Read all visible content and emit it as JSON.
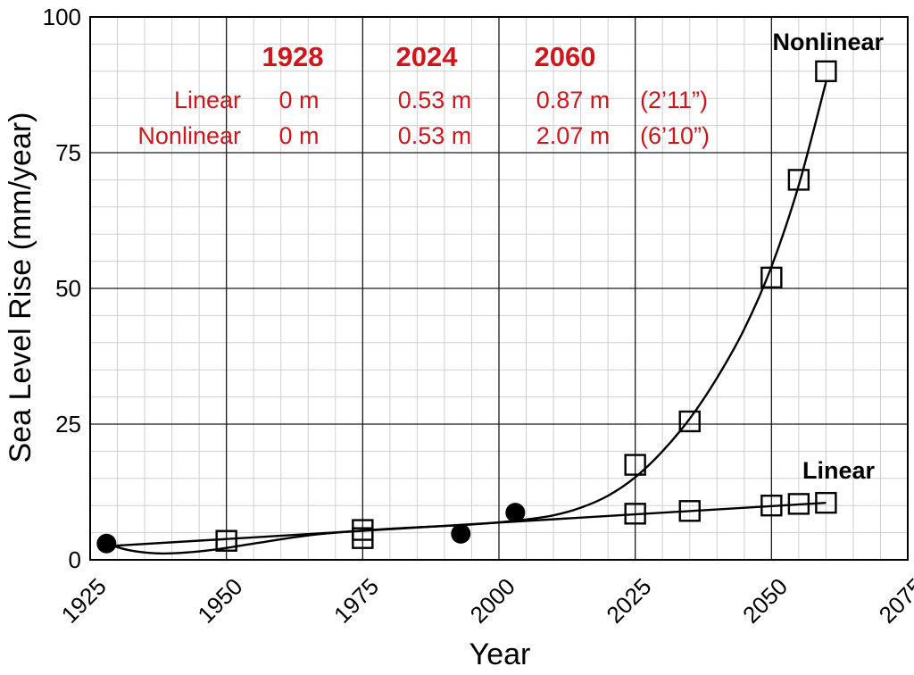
{
  "chart_data": {
    "type": "scatter",
    "xlabel": "Year",
    "ylabel": "Sea Level Rise (mm/year)",
    "xlim": [
      1925,
      2075
    ],
    "ylim": [
      0,
      100
    ],
    "x_ticks": [
      "1925",
      "1950",
      "1975",
      "2000",
      "2025",
      "2050",
      "2075"
    ],
    "y_ticks": [
      "0",
      "25",
      "50",
      "75",
      "100"
    ],
    "grid": true,
    "series": [
      {
        "name": "Nonlinear",
        "marker": "square",
        "points": [
          {
            "x": 1950,
            "y": 3.5
          },
          {
            "x": 1975,
            "y": 4.0
          },
          {
            "x": 1975,
            "y": 5.5
          },
          {
            "x": 2025,
            "y": 17.5
          },
          {
            "x": 2035,
            "y": 25.5
          },
          {
            "x": 2050,
            "y": 52
          },
          {
            "x": 2055,
            "y": 70
          },
          {
            "x": 2060,
            "y": 90
          }
        ]
      },
      {
        "name": "Linear",
        "marker": "square",
        "points": [
          {
            "x": 2025,
            "y": 8.5
          },
          {
            "x": 2035,
            "y": 9.0
          },
          {
            "x": 2050,
            "y": 10.0
          },
          {
            "x": 2055,
            "y": 10.3
          },
          {
            "x": 2060,
            "y": 10.5
          }
        ]
      },
      {
        "marker": "circle",
        "points": [
          {
            "x": 1928,
            "y": 3.0
          },
          {
            "x": 1993,
            "y": 4.8
          },
          {
            "x": 2003,
            "y": 8.7
          }
        ]
      }
    ],
    "fit_lines": [
      {
        "name": "Nonlinear",
        "curve": [
          {
            "x": 1928,
            "y": 3.0
          },
          {
            "x": 1932,
            "y": 1.8
          },
          {
            "x": 1937,
            "y": 1.2
          },
          {
            "x": 1942,
            "y": 1.3
          },
          {
            "x": 1948,
            "y": 1.9
          },
          {
            "x": 1955,
            "y": 3.0
          },
          {
            "x": 1965,
            "y": 4.5
          },
          {
            "x": 1975,
            "y": 5.4
          },
          {
            "x": 1985,
            "y": 6.0
          },
          {
            "x": 1995,
            "y": 6.5
          },
          {
            "x": 2003,
            "y": 7.2
          },
          {
            "x": 2010,
            "y": 8.2
          },
          {
            "x": 2015,
            "y": 9.6
          },
          {
            "x": 2020,
            "y": 11.8
          },
          {
            "x": 2025,
            "y": 15.2
          },
          {
            "x": 2030,
            "y": 20.0
          },
          {
            "x": 2035,
            "y": 26.0
          },
          {
            "x": 2040,
            "y": 33.5
          },
          {
            "x": 2045,
            "y": 42.5
          },
          {
            "x": 2050,
            "y": 54.0
          },
          {
            "x": 2055,
            "y": 69.0
          },
          {
            "x": 2060,
            "y": 88.0
          }
        ]
      },
      {
        "name": "Linear",
        "curve": [
          {
            "x": 1928,
            "y": 2.5
          },
          {
            "x": 2060,
            "y": 10.5
          }
        ]
      }
    ],
    "annotation_table": {
      "headers": [
        "1928",
        "2024",
        "2060"
      ],
      "rows": [
        {
          "label": "Linear",
          "values": [
            "0 m",
            "0.53 m",
            "0.87 m"
          ],
          "note": "(2’11”)"
        },
        {
          "label": "Nonlinear",
          "values": [
            "0 m",
            "0.53 m",
            "2.07 m"
          ],
          "note": "(6’10”)"
        }
      ],
      "color": "#d0161a"
    }
  }
}
